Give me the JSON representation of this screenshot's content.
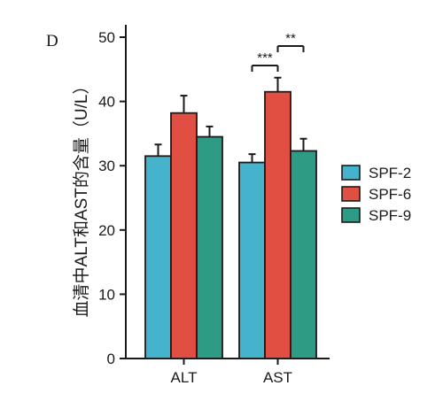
{
  "panel_label": "D",
  "colors": {
    "SPF-2": "#46b3cc",
    "SPF-6": "#e14f43",
    "SPF-9": "#2e9c85",
    "axis": "#1a1a1a"
  },
  "chart_data": {
    "type": "bar",
    "title": "",
    "xlabel": "",
    "ylabel": "血清中ALT和AST的含量（U/L）",
    "ylim": [
      0,
      50
    ],
    "yticks": [
      0,
      10,
      20,
      30,
      40,
      50
    ],
    "categories": [
      "ALT",
      "AST"
    ],
    "series": [
      {
        "name": "SPF-2",
        "values": [
          31.5,
          30.5
        ],
        "errors": [
          1.8,
          1.3
        ]
      },
      {
        "name": "SPF-6",
        "values": [
          38.2,
          41.5
        ],
        "errors": [
          2.7,
          2.2
        ]
      },
      {
        "name": "SPF-9",
        "values": [
          34.5,
          32.3
        ],
        "errors": [
          1.6,
          1.9
        ]
      }
    ],
    "legend_position": "right",
    "significance": [
      {
        "category": "AST",
        "from": "SPF-2",
        "to": "SPF-6",
        "label": "***"
      },
      {
        "category": "AST",
        "from": "SPF-6",
        "to": "SPF-9",
        "label": "**"
      }
    ]
  }
}
